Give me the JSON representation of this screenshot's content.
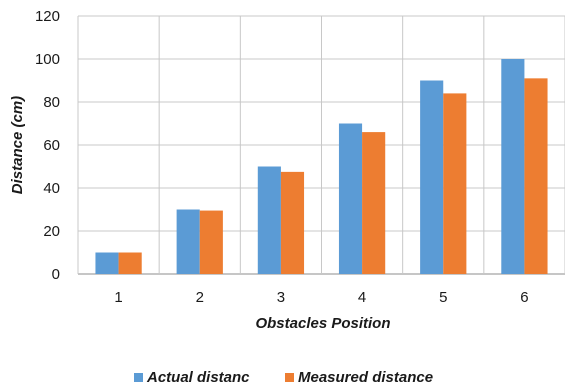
{
  "chart_data": {
    "type": "bar",
    "title": "",
    "xlabel": "Obstacles Position",
    "ylabel": "Distance (cm)",
    "categories": [
      "1",
      "2",
      "3",
      "4",
      "5",
      "6"
    ],
    "series": [
      {
        "name": "Actual distanc",
        "values": [
          10,
          30,
          50,
          70,
          90,
          100
        ],
        "color": "#5b9bd5"
      },
      {
        "name": "Measured distance",
        "values": [
          10,
          29.5,
          47.5,
          66,
          84,
          91
        ],
        "color": "#ed7d31"
      }
    ],
    "ylim": [
      0,
      120
    ],
    "yticks": [
      0,
      20,
      40,
      60,
      80,
      100,
      120
    ],
    "grid": true,
    "legend_position": "bottom"
  }
}
